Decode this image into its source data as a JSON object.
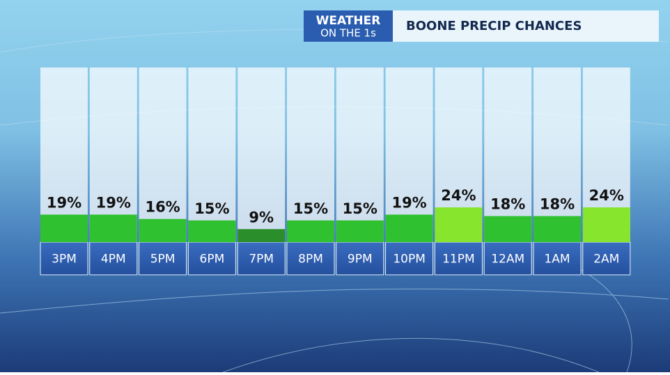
{
  "chart_data": {
    "type": "bar",
    "brand": [
      "WEATHER",
      "ON THE 1s"
    ],
    "title": "BOONE PRECIP CHANCES",
    "categories": [
      "3PM",
      "4PM",
      "5PM",
      "6PM",
      "7PM",
      "8PM",
      "9PM",
      "10PM",
      "11PM",
      "12AM",
      "1AM",
      "2AM"
    ],
    "values": [
      19,
      19,
      16,
      15,
      9,
      15,
      15,
      19,
      24,
      18,
      18,
      24
    ],
    "value_labels": [
      "19%",
      "19%",
      "16%",
      "15%",
      "9%",
      "15%",
      "15%",
      "19%",
      "24%",
      "18%",
      "18%",
      "24%"
    ],
    "colors": [
      "#2fc12f",
      "#2fc12f",
      "#2fc12f",
      "#2fc12f",
      "#2a8e2a",
      "#2fc12f",
      "#2fc12f",
      "#2fc12f",
      "#86e52c",
      "#2fc12f",
      "#2fc12f",
      "#86e52c"
    ]
  }
}
